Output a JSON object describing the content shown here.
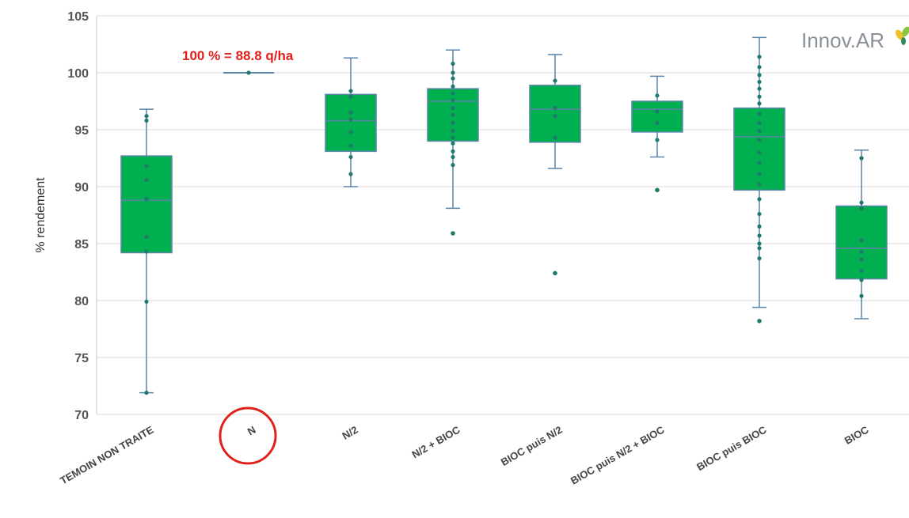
{
  "colors": {
    "box_fill": "#00b050",
    "box_stroke": "#5a84a8",
    "point": "#1f7a6c",
    "grid": "#d9d9d9",
    "annotation": "#e0201b"
  },
  "logo": {
    "text": "Innov.AR"
  },
  "annotation": {
    "text": "100 % = 88.8 q/ha",
    "highlight_category": "N"
  },
  "chart_data": {
    "type": "box",
    "ylabel": "% rendement",
    "xlabel": "",
    "ylim": [
      70,
      105
    ],
    "yticks": [
      70,
      75,
      80,
      85,
      90,
      95,
      100,
      105
    ],
    "grid": true,
    "categories": [
      "TEMOIN NON TRAITE",
      "N",
      "N/2",
      "N/2 + BIOC",
      "BIOC puis N/2",
      "BIOC puis N/2 + BIOC",
      "BIOC puis BIOC",
      "BIOC"
    ],
    "boxes": [
      {
        "whisker_low": 71.9,
        "q1": 84.2,
        "median": 88.8,
        "q3": 92.7,
        "whisker_high": 96.8,
        "points": [
          96.2,
          95.8,
          91.8,
          90.6,
          88.9,
          85.6,
          84.3,
          79.9,
          71.9
        ],
        "outliers": []
      },
      {
        "whisker_low": 100,
        "q1": 100,
        "median": 100,
        "q3": 100,
        "whisker_high": 100,
        "points": [
          100
        ],
        "outliers": []
      },
      {
        "whisker_low": 90.0,
        "q1": 93.1,
        "median": 95.8,
        "q3": 98.1,
        "whisker_high": 101.3,
        "points": [
          98.4,
          97.9,
          96.5,
          95.9,
          94.8,
          93.6,
          92.6,
          91.1
        ],
        "outliers": []
      },
      {
        "whisker_low": 88.1,
        "q1": 94.0,
        "median": 97.5,
        "q3": 98.6,
        "whisker_high": 102.0,
        "points": [
          100.8,
          100.0,
          99.5,
          98.8,
          98.2,
          97.6,
          96.9,
          96.3,
          95.6,
          94.9,
          94.3,
          93.8,
          93.1,
          92.6,
          91.9
        ],
        "outliers": [
          85.9
        ]
      },
      {
        "whisker_low": 91.6,
        "q1": 93.9,
        "median": 96.8,
        "q3": 98.9,
        "whisker_high": 101.6,
        "points": [
          99.3,
          96.9,
          96.2,
          94.3
        ],
        "outliers": [
          82.4
        ]
      },
      {
        "whisker_low": 92.6,
        "q1": 94.8,
        "median": 96.8,
        "q3": 97.5,
        "whisker_high": 99.7,
        "points": [
          98.0,
          96.6,
          95.6,
          94.1
        ],
        "outliers": [
          89.7
        ]
      },
      {
        "whisker_low": 79.4,
        "q1": 89.7,
        "median": 94.4,
        "q3": 96.9,
        "whisker_high": 103.1,
        "points": [
          101.4,
          100.5,
          99.8,
          99.2,
          98.6,
          97.9,
          97.3,
          96.4,
          95.6,
          94.9,
          94.1,
          93.0,
          92.1,
          91.1,
          90.2,
          88.9,
          87.6,
          86.5,
          85.7,
          85.0,
          84.6,
          83.7
        ],
        "outliers": [
          78.2
        ]
      },
      {
        "whisker_low": 78.4,
        "q1": 81.9,
        "median": 84.6,
        "q3": 88.3,
        "whisker_high": 93.2,
        "points": [
          92.5,
          88.6,
          88.1,
          85.3,
          84.3,
          83.6,
          82.6,
          81.8,
          80.4
        ],
        "outliers": []
      }
    ]
  }
}
